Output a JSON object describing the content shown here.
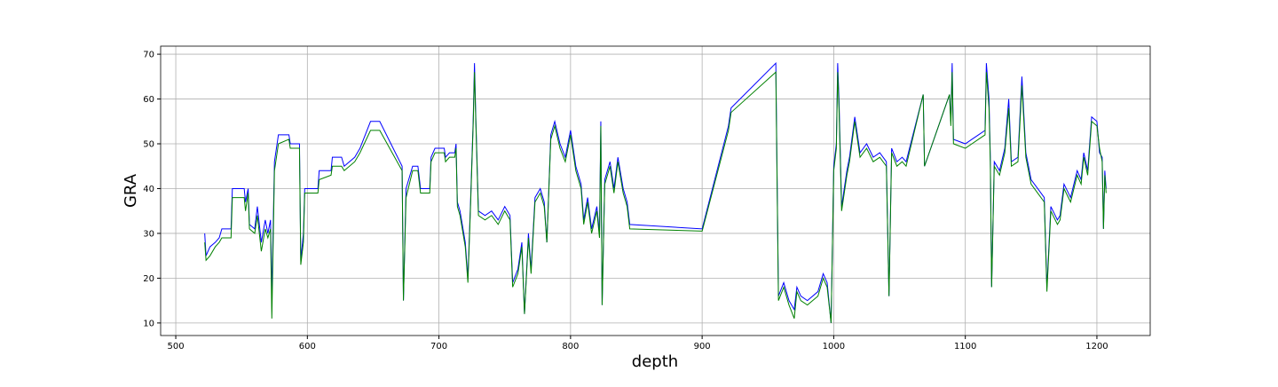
{
  "chart_data": {
    "type": "line",
    "xlabel": "depth",
    "ylabel": "GRA",
    "x": [
      522,
      523,
      526,
      530,
      533,
      535,
      542,
      543,
      552,
      553,
      555,
      556,
      560,
      562,
      565,
      568,
      570,
      572,
      573,
      575,
      578,
      586,
      587,
      594,
      595,
      597,
      598,
      608,
      609,
      618,
      619,
      626,
      628,
      636,
      640,
      648,
      655,
      672,
      673,
      675,
      680,
      684,
      686,
      693,
      694,
      697,
      704,
      705,
      708,
      712,
      713,
      714,
      716,
      720,
      722,
      724,
      726,
      727,
      728,
      730,
      735,
      740,
      745,
      750,
      754,
      756,
      760,
      763,
      765,
      768,
      770,
      773,
      777,
      780,
      782,
      785,
      788,
      792,
      796,
      800,
      804,
      808,
      810,
      813,
      816,
      820,
      822,
      823,
      824,
      826,
      830,
      833,
      836,
      840,
      843,
      845,
      900,
      920,
      922,
      956,
      958,
      962,
      966,
      970,
      972,
      975,
      980,
      988,
      992,
      995,
      998,
      1000,
      1002,
      1003,
      1004,
      1006,
      1010,
      1012,
      1016,
      1020,
      1025,
      1030,
      1035,
      1040,
      1042,
      1044,
      1048,
      1052,
      1055,
      1068,
      1069,
      1088,
      1089,
      1090,
      1091,
      1100,
      1105,
      1110,
      1115,
      1116,
      1118,
      1119,
      1120,
      1122,
      1126,
      1130,
      1133,
      1135,
      1140,
      1143,
      1146,
      1150,
      1155,
      1160,
      1162,
      1165,
      1170,
      1172,
      1175,
      1180,
      1185,
      1188,
      1190,
      1193,
      1196,
      1200,
      1202,
      1204,
      1205,
      1206,
      1207
    ],
    "series": [
      {
        "color": "#0000ff",
        "values": [
          30,
          25,
          27,
          28,
          29,
          31,
          31,
          40,
          40,
          37,
          40,
          32,
          31,
          36,
          28,
          33,
          30,
          33,
          16,
          46,
          52,
          52,
          50,
          50,
          24,
          30,
          40,
          40,
          44,
          44,
          47,
          47,
          45,
          47,
          49,
          55,
          55,
          45,
          15,
          40,
          45,
          45,
          40,
          40,
          47,
          49,
          49,
          47,
          48,
          48,
          50,
          37,
          35,
          28,
          20,
          37,
          55,
          68,
          56,
          35,
          34,
          35,
          33,
          36,
          34,
          19,
          22,
          28,
          12,
          30,
          22,
          38,
          40,
          37,
          28,
          52,
          55,
          50,
          47,
          53,
          45,
          41,
          33,
          38,
          31,
          36,
          30,
          55,
          14,
          42,
          46,
          40,
          47,
          40,
          37,
          32,
          31,
          54,
          58,
          68,
          16,
          19,
          15,
          13,
          18,
          16,
          15,
          17,
          21,
          19,
          10,
          45,
          50,
          68,
          60,
          36,
          44,
          47,
          56,
          48,
          50,
          47,
          48,
          46,
          16,
          49,
          46,
          47,
          46,
          61,
          45,
          61,
          55,
          68,
          51,
          50,
          51,
          52,
          53,
          68,
          60,
          47,
          18,
          46,
          44,
          49,
          60,
          46,
          47,
          65,
          48,
          42,
          40,
          38,
          18,
          36,
          33,
          34,
          41,
          38,
          44,
          42,
          48,
          44,
          56,
          55,
          48,
          47,
          31,
          44,
          40
        ]
      },
      {
        "color": "#008000",
        "values": [
          28,
          24,
          25,
          27,
          28,
          29,
          29,
          38,
          38,
          35,
          39,
          31,
          30,
          34,
          26,
          31,
          29,
          31,
          11,
          44,
          50,
          51,
          49,
          49,
          23,
          28,
          39,
          39,
          42,
          43,
          45,
          45,
          44,
          46,
          48,
          53,
          53,
          44,
          15,
          38,
          44,
          44,
          39,
          39,
          46,
          48,
          48,
          46,
          47,
          47,
          49,
          36,
          34,
          27,
          19,
          36,
          54,
          66,
          55,
          34,
          33,
          34,
          32,
          35,
          33,
          18,
          21,
          27,
          12,
          29,
          21,
          37,
          39,
          36,
          28,
          51,
          54,
          49,
          46,
          52,
          44,
          40,
          32,
          37,
          30,
          35,
          29,
          54,
          14,
          41,
          45,
          39,
          46,
          39,
          36,
          31,
          30.5,
          53,
          57,
          66,
          15,
          18,
          14,
          11,
          17,
          15,
          14,
          16,
          20,
          18,
          10,
          44,
          49,
          66,
          58,
          35,
          43,
          46,
          55,
          47,
          49,
          46,
          47,
          45,
          16,
          48,
          45,
          46,
          45,
          61,
          45,
          61,
          54,
          66,
          50,
          49,
          50,
          51,
          52,
          66,
          58,
          46,
          18,
          45,
          43,
          48,
          58,
          45,
          46,
          63,
          47,
          41,
          39,
          37,
          17,
          35,
          32,
          33,
          40,
          37,
          43,
          41,
          47,
          43,
          55,
          54,
          49,
          46,
          31,
          43,
          39
        ]
      }
    ],
    "xlim": [
      488.5,
      1240.5
    ],
    "xticks": [
      500,
      600,
      700,
      800,
      900,
      1000,
      1100,
      1200
    ],
    "ylim": [
      7.2,
      71.8
    ],
    "yticks": [
      10,
      20,
      30,
      40,
      50,
      60,
      70
    ],
    "grid": true
  }
}
